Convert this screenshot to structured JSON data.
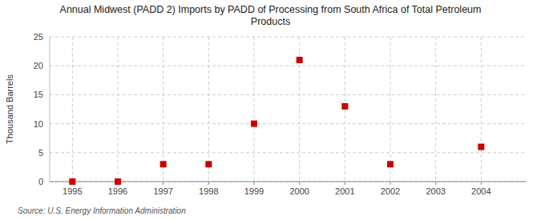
{
  "chart_data": {
    "type": "scatter",
    "title": "Annual Midwest (PADD 2) Imports by PADD of Processing from South Africa of Total Petroleum\nProducts",
    "y_label": "Thousand Barrels",
    "annotations": [
      "Source: U.S. Energy Information Administration"
    ],
    "x": [
      1995,
      1996,
      1997,
      1998,
      1999,
      2000,
      2001,
      2002,
      2004
    ],
    "values": [
      0,
      0,
      3,
      3,
      10,
      21,
      13,
      3,
      6
    ],
    "color": "#CC0000",
    "marker": "square",
    "xlim": [
      1994.5,
      2005.0
    ],
    "ylim": [
      0,
      25
    ],
    "xticks": [
      1995,
      1996,
      1997,
      1998,
      1999,
      2000,
      2001,
      2002,
      2003,
      2004
    ],
    "yticks": [
      0,
      5,
      10,
      15,
      20,
      25
    ],
    "grid": true
  }
}
